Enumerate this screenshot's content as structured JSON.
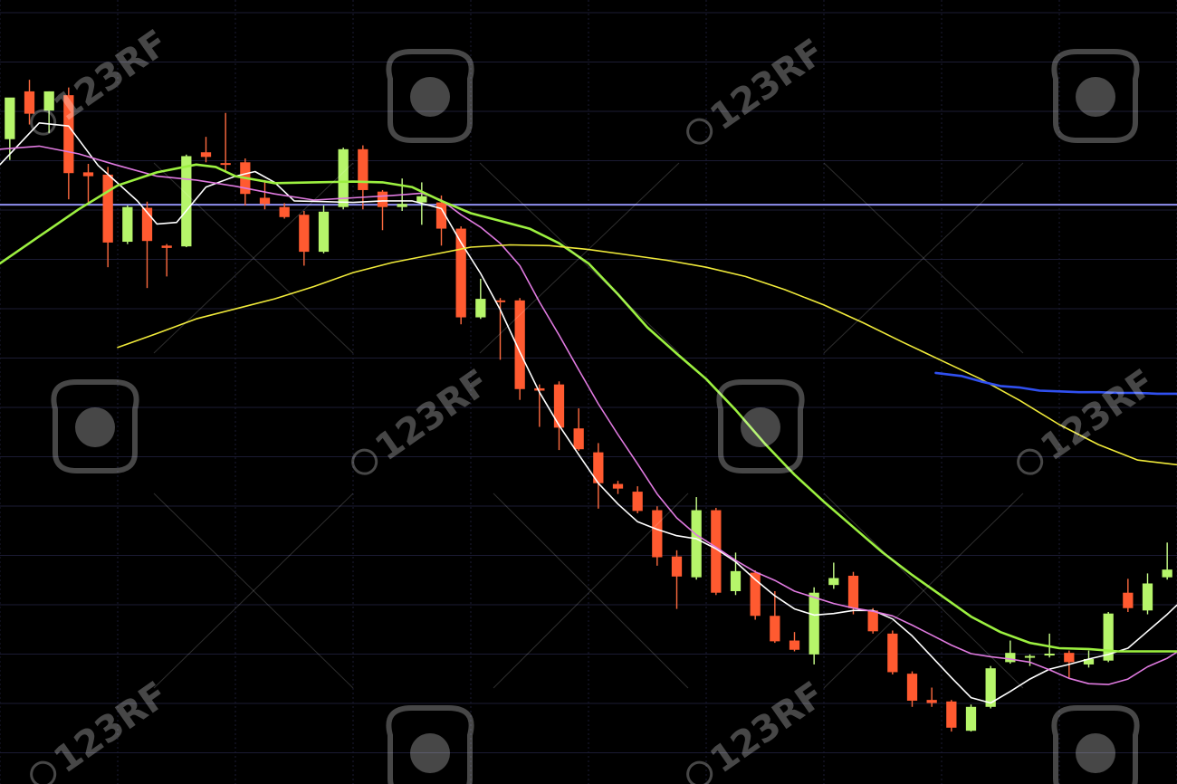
{
  "chart_data": {
    "type": "candlestick",
    "title": "",
    "xlabel": "",
    "ylabel": "",
    "grid": true,
    "ylim": [
      0,
      100
    ],
    "xlim": [
      0,
      60
    ],
    "colors": {
      "background": "#000000",
      "grid": "#1b1b33",
      "bull": "#b6f56a",
      "bear": "#ff5a30",
      "wick_bull": "#c8ff8a",
      "wick_bear": "#ff6b40"
    },
    "horizontal_line": {
      "y": 75.1,
      "color": "#8f8ff0"
    },
    "candles": [
      {
        "x": 0.5,
        "open": 83.6,
        "high": 88.5,
        "low": 80.9,
        "close": 89.0
      },
      {
        "x": 1.5,
        "open": 89.8,
        "high": 91.3,
        "low": 85.5,
        "close": 86.9
      },
      {
        "x": 2.5,
        "open": 87.3,
        "high": 89.8,
        "low": 84.4,
        "close": 89.8
      },
      {
        "x": 3.5,
        "open": 89.3,
        "high": 90.3,
        "low": 75.8,
        "close": 79.2
      },
      {
        "x": 4.5,
        "open": 79.3,
        "high": 80.4,
        "low": 75.3,
        "close": 78.8
      },
      {
        "x": 5.5,
        "open": 79.0,
        "high": 80.0,
        "low": 67.0,
        "close": 70.2
      },
      {
        "x": 6.5,
        "open": 70.3,
        "high": 75.0,
        "low": 70.0,
        "close": 74.8
      },
      {
        "x": 7.5,
        "open": 74.7,
        "high": 75.5,
        "low": 64.3,
        "close": 70.4
      },
      {
        "x": 8.5,
        "open": 69.8,
        "high": 70.0,
        "low": 65.8,
        "close": 69.5
      },
      {
        "x": 9.5,
        "open": 69.7,
        "high": 81.6,
        "low": 69.6,
        "close": 81.4
      },
      {
        "x": 10.5,
        "open": 81.9,
        "high": 83.9,
        "low": 80.6,
        "close": 81.3
      },
      {
        "x": 11.5,
        "open": 80.5,
        "high": 87.0,
        "low": 79.5,
        "close": 80.4
      },
      {
        "x": 12.5,
        "open": 80.6,
        "high": 81.1,
        "low": 75.0,
        "close": 76.5
      },
      {
        "x": 13.5,
        "open": 76.0,
        "high": 78.3,
        "low": 74.5,
        "close": 75.2
      },
      {
        "x": 14.5,
        "open": 74.8,
        "high": 75.3,
        "low": 73.3,
        "close": 73.5
      },
      {
        "x": 15.5,
        "open": 73.8,
        "high": 74.3,
        "low": 67.2,
        "close": 69.0
      },
      {
        "x": 16.5,
        "open": 69.0,
        "high": 75.0,
        "low": 68.8,
        "close": 74.2
      },
      {
        "x": 17.5,
        "open": 74.8,
        "high": 82.5,
        "low": 74.5,
        "close": 82.3
      },
      {
        "x": 18.5,
        "open": 82.3,
        "high": 82.8,
        "low": 74.5,
        "close": 77.0
      },
      {
        "x": 19.5,
        "open": 76.8,
        "high": 77.0,
        "low": 71.8,
        "close": 74.8
      },
      {
        "x": 20.5,
        "open": 74.8,
        "high": 78.5,
        "low": 74.3,
        "close": 75.2
      },
      {
        "x": 21.5,
        "open": 75.4,
        "high": 78.0,
        "low": 72.5,
        "close": 76.2
      },
      {
        "x": 22.5,
        "open": 75.4,
        "high": 76.3,
        "low": 69.8,
        "close": 72.0
      },
      {
        "x": 23.5,
        "open": 72.0,
        "high": 72.3,
        "low": 59.6,
        "close": 60.5
      },
      {
        "x": 24.5,
        "open": 60.5,
        "high": 65.5,
        "low": 60.3,
        "close": 62.9
      },
      {
        "x": 25.5,
        "open": 62.7,
        "high": 63.0,
        "low": 55.0,
        "close": 62.5
      },
      {
        "x": 26.5,
        "open": 62.7,
        "high": 63.0,
        "low": 49.8,
        "close": 51.2
      },
      {
        "x": 27.5,
        "open": 51.3,
        "high": 51.8,
        "low": 46.3,
        "close": 51.0
      },
      {
        "x": 28.5,
        "open": 51.8,
        "high": 52.2,
        "low": 43.3,
        "close": 46.2
      },
      {
        "x": 29.5,
        "open": 46.1,
        "high": 48.7,
        "low": 43.2,
        "close": 43.4
      },
      {
        "x": 30.5,
        "open": 43.0,
        "high": 44.2,
        "low": 35.7,
        "close": 39.0
      },
      {
        "x": 31.5,
        "open": 38.9,
        "high": 39.3,
        "low": 37.6,
        "close": 38.3
      },
      {
        "x": 32.5,
        "open": 37.9,
        "high": 38.6,
        "low": 35.1,
        "close": 35.4
      },
      {
        "x": 33.5,
        "open": 35.5,
        "high": 36.0,
        "low": 28.3,
        "close": 29.4
      },
      {
        "x": 34.5,
        "open": 29.5,
        "high": 30.3,
        "low": 22.7,
        "close": 26.9
      },
      {
        "x": 35.5,
        "open": 26.8,
        "high": 37.2,
        "low": 26.5,
        "close": 35.5
      },
      {
        "x": 36.5,
        "open": 35.5,
        "high": 35.8,
        "low": 24.5,
        "close": 24.8
      },
      {
        "x": 37.5,
        "open": 25.0,
        "high": 30.0,
        "low": 24.5,
        "close": 27.6
      },
      {
        "x": 38.5,
        "open": 27.4,
        "high": 27.7,
        "low": 21.3,
        "close": 21.8
      },
      {
        "x": 39.5,
        "open": 21.8,
        "high": 25.0,
        "low": 18.3,
        "close": 18.5
      },
      {
        "x": 40.5,
        "open": 18.6,
        "high": 19.7,
        "low": 17.2,
        "close": 17.4
      },
      {
        "x": 41.5,
        "open": 16.8,
        "high": 25.5,
        "low": 15.5,
        "close": 24.8
      },
      {
        "x": 42.5,
        "open": 25.8,
        "high": 28.7,
        "low": 25.3,
        "close": 26.7
      },
      {
        "x": 43.5,
        "open": 27.0,
        "high": 27.5,
        "low": 22.0,
        "close": 22.8
      },
      {
        "x": 44.5,
        "open": 22.5,
        "high": 22.8,
        "low": 19.5,
        "close": 19.8
      },
      {
        "x": 45.5,
        "open": 19.5,
        "high": 19.9,
        "low": 14.2,
        "close": 14.5
      },
      {
        "x": 46.5,
        "open": 14.3,
        "high": 14.6,
        "low": 10.0,
        "close": 10.8
      },
      {
        "x": 47.5,
        "open": 10.9,
        "high": 12.5,
        "low": 10.0,
        "close": 10.5
      },
      {
        "x": 48.5,
        "open": 10.7,
        "high": 10.9,
        "low": 6.8,
        "close": 7.3
      },
      {
        "x": 49.5,
        "open": 6.9,
        "high": 10.3,
        "low": 6.8,
        "close": 10.0
      },
      {
        "x": 50.5,
        "open": 10.0,
        "high": 15.3,
        "low": 9.8,
        "close": 15.0
      },
      {
        "x": 51.5,
        "open": 15.8,
        "high": 18.6,
        "low": 15.6,
        "close": 17.0
      },
      {
        "x": 52.5,
        "open": 16.4,
        "high": 16.8,
        "low": 15.3,
        "close": 16.6
      },
      {
        "x": 53.5,
        "open": 16.7,
        "high": 19.5,
        "low": 16.4,
        "close": 16.9
      },
      {
        "x": 54.5,
        "open": 17.0,
        "high": 17.3,
        "low": 13.8,
        "close": 15.8
      },
      {
        "x": 55.5,
        "open": 15.5,
        "high": 17.3,
        "low": 15.1,
        "close": 16.2
      },
      {
        "x": 56.5,
        "open": 16.0,
        "high": 22.3,
        "low": 15.8,
        "close": 22.1
      },
      {
        "x": 57.5,
        "open": 24.8,
        "high": 26.6,
        "low": 22.3,
        "close": 22.8
      },
      {
        "x": 58.5,
        "open": 22.5,
        "high": 27.3,
        "low": 22.0,
        "close": 26.0
      },
      {
        "x": 59.5,
        "open": 26.8,
        "high": 31.3,
        "low": 26.5,
        "close": 27.8
      }
    ],
    "series": [
      {
        "color": "#ffffff",
        "points": [
          [
            0,
            80.3
          ],
          [
            2,
            85.7
          ],
          [
            3.5,
            85.3
          ],
          [
            5,
            80.2
          ],
          [
            7,
            75.6
          ],
          [
            8,
            72.6
          ],
          [
            9,
            72.8
          ],
          [
            10.5,
            77.4
          ],
          [
            12,
            78.8
          ],
          [
            13,
            79.4
          ],
          [
            14,
            78.0
          ],
          [
            15,
            75.6
          ],
          [
            16.5,
            75.5
          ],
          [
            18,
            75.4
          ],
          [
            19.5,
            75.6
          ],
          [
            21,
            75.6
          ],
          [
            22.5,
            74.6
          ],
          [
            23.5,
            70.2
          ],
          [
            24.5,
            66.2
          ],
          [
            25.5,
            61.5
          ],
          [
            26.5,
            56.0
          ],
          [
            27.5,
            50.8
          ],
          [
            28.5,
            46.5
          ],
          [
            29.5,
            42.7
          ],
          [
            30.5,
            39.0
          ],
          [
            31.5,
            36.3
          ],
          [
            32.5,
            34.0
          ],
          [
            33.5,
            33.0
          ],
          [
            34.5,
            32.2
          ],
          [
            35.5,
            31.8
          ],
          [
            36.5,
            30.5
          ],
          [
            37.5,
            28.8
          ],
          [
            38.5,
            26.5
          ],
          [
            39.5,
            24.4
          ],
          [
            40.5,
            22.7
          ],
          [
            41.5,
            21.9
          ],
          [
            42.5,
            22.1
          ],
          [
            43.5,
            22.5
          ],
          [
            44.5,
            22.5
          ],
          [
            45.5,
            21.4
          ],
          [
            46.5,
            19.2
          ],
          [
            47.5,
            16.5
          ],
          [
            48.5,
            13.8
          ],
          [
            49.5,
            11.2
          ],
          [
            50.5,
            10.5
          ],
          [
            51.5,
            12.0
          ],
          [
            52.5,
            13.6
          ],
          [
            53.5,
            14.9
          ],
          [
            54.5,
            15.5
          ],
          [
            55.5,
            16.2
          ],
          [
            56.5,
            16.8
          ],
          [
            57.5,
            17.6
          ],
          [
            58.5,
            19.8
          ],
          [
            59.5,
            22.0
          ],
          [
            60,
            23.2
          ]
        ]
      },
      {
        "color": "#e07ae0",
        "points": [
          [
            0,
            82.3
          ],
          [
            2,
            82.7
          ],
          [
            4,
            81.7
          ],
          [
            6,
            80.2
          ],
          [
            8,
            78.8
          ],
          [
            10,
            78.3
          ],
          [
            12,
            77.5
          ],
          [
            14,
            76.5
          ],
          [
            16,
            75.7
          ],
          [
            18,
            76.0
          ],
          [
            20,
            76.3
          ],
          [
            21.5,
            76.6
          ],
          [
            22.5,
            75.7
          ],
          [
            23.5,
            73.8
          ],
          [
            24.5,
            72.2
          ],
          [
            25.5,
            70.1
          ],
          [
            26.5,
            67.2
          ],
          [
            27.5,
            62.5
          ],
          [
            28.5,
            58.2
          ],
          [
            29.5,
            53.7
          ],
          [
            30.5,
            49.3
          ],
          [
            31.5,
            45.3
          ],
          [
            32.5,
            41.5
          ],
          [
            33.5,
            37.6
          ],
          [
            34.5,
            34.5
          ],
          [
            35.5,
            32.3
          ],
          [
            36.5,
            30.7
          ],
          [
            37.5,
            29.0
          ],
          [
            38.5,
            27.5
          ],
          [
            39.5,
            26.4
          ],
          [
            40.5,
            25.0
          ],
          [
            41.5,
            24.2
          ],
          [
            42.5,
            23.4
          ],
          [
            43.5,
            22.8
          ],
          [
            44.5,
            22.4
          ],
          [
            45.5,
            21.8
          ],
          [
            46.5,
            20.6
          ],
          [
            47.5,
            19.3
          ],
          [
            48.5,
            18.0
          ],
          [
            49.5,
            16.9
          ],
          [
            50.5,
            16.5
          ],
          [
            51.5,
            16.2
          ],
          [
            52.5,
            15.8
          ],
          [
            53.5,
            14.8
          ],
          [
            54.5,
            13.7
          ],
          [
            55.5,
            13.0
          ],
          [
            56.5,
            12.9
          ],
          [
            57.5,
            13.6
          ],
          [
            58.5,
            15.2
          ],
          [
            59.5,
            16.3
          ],
          [
            60,
            17.1
          ]
        ]
      },
      {
        "color": "#9cf040",
        "points": [
          [
            0,
            67.5
          ],
          [
            2,
            71.0
          ],
          [
            4,
            74.5
          ],
          [
            6,
            77.6
          ],
          [
            8,
            79.3
          ],
          [
            10,
            80.3
          ],
          [
            11,
            80.0
          ],
          [
            12,
            78.8
          ],
          [
            14,
            77.9
          ],
          [
            16,
            78.0
          ],
          [
            18,
            78.1
          ],
          [
            19.5,
            78.0
          ],
          [
            21,
            77.4
          ],
          [
            22.5,
            75.6
          ],
          [
            24,
            74.0
          ],
          [
            25.5,
            73.0
          ],
          [
            27,
            72.0
          ],
          [
            28.5,
            70.1
          ],
          [
            30,
            67.5
          ],
          [
            31.5,
            63.5
          ],
          [
            33,
            59.2
          ],
          [
            34.5,
            55.8
          ],
          [
            36,
            52.5
          ],
          [
            37.5,
            48.5
          ],
          [
            39,
            44.1
          ],
          [
            40.5,
            40.1
          ],
          [
            42,
            36.6
          ],
          [
            43.5,
            33.3
          ],
          [
            45,
            30.0
          ],
          [
            46.5,
            27.1
          ],
          [
            48,
            24.4
          ],
          [
            49.5,
            21.7
          ],
          [
            51,
            19.7
          ],
          [
            52.5,
            18.3
          ],
          [
            54,
            17.6
          ],
          [
            55.5,
            17.5
          ],
          [
            57,
            17.2
          ],
          [
            58.5,
            17.2
          ],
          [
            60,
            17.2
          ]
        ]
      },
      {
        "color": "#f0ea3a",
        "points": [
          [
            6,
            56.6
          ],
          [
            8,
            58.4
          ],
          [
            10,
            60.3
          ],
          [
            12,
            61.6
          ],
          [
            14,
            62.9
          ],
          [
            16,
            64.5
          ],
          [
            18,
            66.3
          ],
          [
            20,
            67.6
          ],
          [
            22,
            68.6
          ],
          [
            24,
            69.6
          ],
          [
            26,
            69.9
          ],
          [
            28,
            69.8
          ],
          [
            30,
            69.3
          ],
          [
            32,
            68.6
          ],
          [
            34,
            67.9
          ],
          [
            36,
            67.0
          ],
          [
            38,
            65.8
          ],
          [
            40,
            64.1
          ],
          [
            42,
            62.1
          ],
          [
            44,
            59.8
          ],
          [
            46,
            57.3
          ],
          [
            48,
            54.9
          ],
          [
            50,
            52.5
          ],
          [
            52,
            49.7
          ],
          [
            54,
            46.6
          ],
          [
            56,
            44.0
          ],
          [
            58,
            42.0
          ],
          [
            60,
            41.4
          ]
        ]
      },
      {
        "color": "#3050f0",
        "points": [
          [
            47.7,
            53.3
          ],
          [
            49,
            52.9
          ],
          [
            50,
            52.2
          ],
          [
            51,
            51.6
          ],
          [
            52,
            51.4
          ],
          [
            53,
            51.0
          ],
          [
            54,
            50.9
          ],
          [
            55,
            50.8
          ],
          [
            56,
            50.8
          ],
          [
            57,
            50.7
          ],
          [
            58,
            50.7
          ],
          [
            59,
            50.6
          ],
          [
            60,
            50.6
          ]
        ]
      }
    ]
  },
  "watermarks": [
    {
      "text": "123RF",
      "icon": "camera-icon",
      "kind": "logo"
    },
    {
      "text": "123RF",
      "icon": "camera-icon",
      "kind": "logo"
    },
    {
      "text": "123RF",
      "icon": "camera-icon",
      "kind": "logo"
    },
    {
      "text": "123RF",
      "icon": "camera-icon",
      "kind": "logo"
    },
    {
      "text": "123RF",
      "icon": "camera-icon",
      "kind": "logo"
    }
  ]
}
